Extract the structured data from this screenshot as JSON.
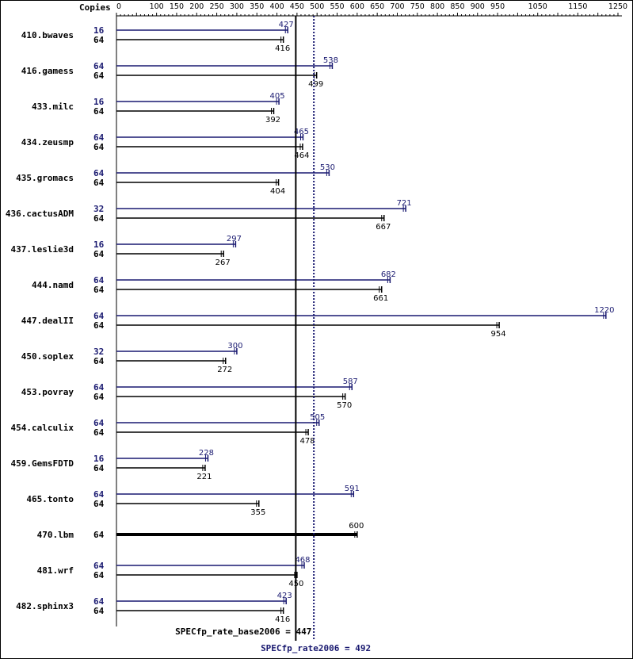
{
  "chart_data": {
    "type": "bar",
    "orientation": "horizontal",
    "copies_header": "Copies",
    "x_ticks": [
      0,
      50,
      100,
      150,
      200,
      250,
      300,
      350,
      400,
      450,
      500,
      550,
      600,
      650,
      700,
      750,
      800,
      850,
      900,
      950,
      1000,
      1050,
      1100,
      1150,
      1200,
      1250
    ],
    "x_tick_labels": [
      "0",
      "",
      "100",
      "150",
      "200",
      "250",
      "300",
      "350",
      "400",
      "450",
      "500",
      "550",
      "600",
      "650",
      "700",
      "750",
      "800",
      "850",
      "900",
      "950",
      "",
      "1050",
      "",
      "1150",
      "",
      "1250"
    ],
    "xlim": [
      0,
      1250
    ],
    "colors": {
      "peak": "#191970",
      "base": "#000000"
    },
    "benchmarks": [
      {
        "name": "410.bwaves",
        "peak_copies": "16",
        "peak": 427,
        "peak_label": "427",
        "base_copies": "64",
        "base": 416,
        "base_label": "416"
      },
      {
        "name": "416.gamess",
        "peak_copies": "64",
        "peak": 538,
        "peak_label": "538",
        "base_copies": "64",
        "base": 499,
        "base_label": "499"
      },
      {
        "name": "433.milc",
        "peak_copies": "16",
        "peak": 405,
        "peak_label": "405",
        "base_copies": "64",
        "base": 392,
        "base_label": "392"
      },
      {
        "name": "434.zeusmp",
        "peak_copies": "64",
        "peak": 465,
        "peak_label": "465",
        "base_copies": "64",
        "base": 464,
        "base_label": "464"
      },
      {
        "name": "435.gromacs",
        "peak_copies": "64",
        "peak": 530,
        "peak_label": "530",
        "base_copies": "64",
        "base": 404,
        "base_label": "404"
      },
      {
        "name": "436.cactusADM",
        "peak_copies": "32",
        "peak": 721,
        "peak_label": "721",
        "base_copies": "64",
        "base": 667,
        "base_label": "667"
      },
      {
        "name": "437.leslie3d",
        "peak_copies": "16",
        "peak": 297,
        "peak_label": "297",
        "base_copies": "64",
        "base": 267,
        "base_label": "267"
      },
      {
        "name": "444.namd",
        "peak_copies": "64",
        "peak": 682,
        "peak_label": "682",
        "base_copies": "64",
        "base": 661,
        "base_label": "661"
      },
      {
        "name": "447.dealII",
        "peak_copies": "64",
        "peak": 1220,
        "peak_label": "1220",
        "base_copies": "64",
        "base": 954,
        "base_label": "954"
      },
      {
        "name": "450.soplex",
        "peak_copies": "32",
        "peak": 300,
        "peak_label": "300",
        "base_copies": "64",
        "base": 272,
        "base_label": "272"
      },
      {
        "name": "453.povray",
        "peak_copies": "64",
        "peak": 587,
        "peak_label": "587",
        "base_copies": "64",
        "base": 570,
        "base_label": "570"
      },
      {
        "name": "454.calculix",
        "peak_copies": "64",
        "peak": 505,
        "peak_label": "505",
        "base_copies": "64",
        "base": 478,
        "base_label": "478"
      },
      {
        "name": "459.GemsFDTD",
        "peak_copies": "16",
        "peak": 228,
        "peak_label": "228",
        "base_copies": "64",
        "base": 221,
        "base_label": "221"
      },
      {
        "name": "465.tonto",
        "peak_copies": "64",
        "peak": 591,
        "peak_label": "591",
        "base_copies": "64",
        "base": 355,
        "base_label": "355"
      },
      {
        "name": "470.lbm",
        "peak_copies": "",
        "peak": null,
        "peak_label": "",
        "base_copies": "64",
        "base": 600,
        "base_label": "600"
      },
      {
        "name": "481.wrf",
        "peak_copies": "64",
        "peak": 468,
        "peak_label": "468",
        "base_copies": "64",
        "base": 450,
        "base_label": "450"
      },
      {
        "name": "482.sphinx3",
        "peak_copies": "64",
        "peak": 423,
        "peak_label": "423",
        "base_copies": "64",
        "base": 416,
        "base_label": "416"
      }
    ],
    "base_summary": {
      "label": "SPECfp_rate_base2006 = 447",
      "value": 447
    },
    "peak_summary": {
      "label": "SPECfp_rate2006 = 492",
      "value": 492
    }
  }
}
